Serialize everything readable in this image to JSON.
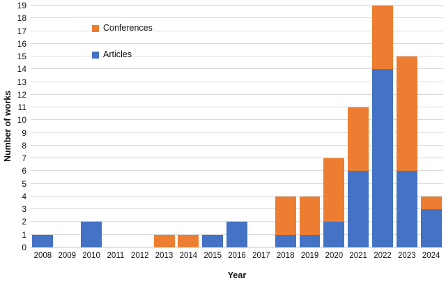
{
  "chart_data": {
    "type": "bar",
    "stacked": true,
    "title": "",
    "xlabel": "Year",
    "ylabel": "Number of works",
    "ylim": [
      0,
      19
    ],
    "ytick_step": 1,
    "grid": "horizontal",
    "legend_position": "top-left-inside",
    "categories": [
      "2008",
      "2009",
      "2010",
      "2011",
      "2012",
      "2013",
      "2014",
      "2015",
      "2016",
      "2017",
      "2018",
      "2019",
      "2020",
      "2021",
      "2022",
      "2023",
      "2024"
    ],
    "series": [
      {
        "name": "Conferences",
        "color": "#ED7D31",
        "values": [
          0,
          0,
          0,
          0,
          0,
          1,
          1,
          0,
          0,
          0,
          3,
          3,
          5,
          5,
          5,
          9,
          1
        ]
      },
      {
        "name": "Articles",
        "color": "#4472C4",
        "values": [
          1,
          0,
          2,
          0,
          0,
          0,
          0,
          1,
          2,
          0,
          1,
          1,
          2,
          6,
          14,
          6,
          3
        ]
      }
    ],
    "totals": [
      1,
      0,
      2,
      0,
      0,
      1,
      1,
      1,
      2,
      0,
      4,
      4,
      7,
      11,
      19,
      15,
      4
    ]
  },
  "colors": {
    "conferences": "#ED7D31",
    "articles": "#4472C4",
    "gridline": "#D9D9D9",
    "baseline": "#BFBFBF",
    "text": "#111111"
  }
}
